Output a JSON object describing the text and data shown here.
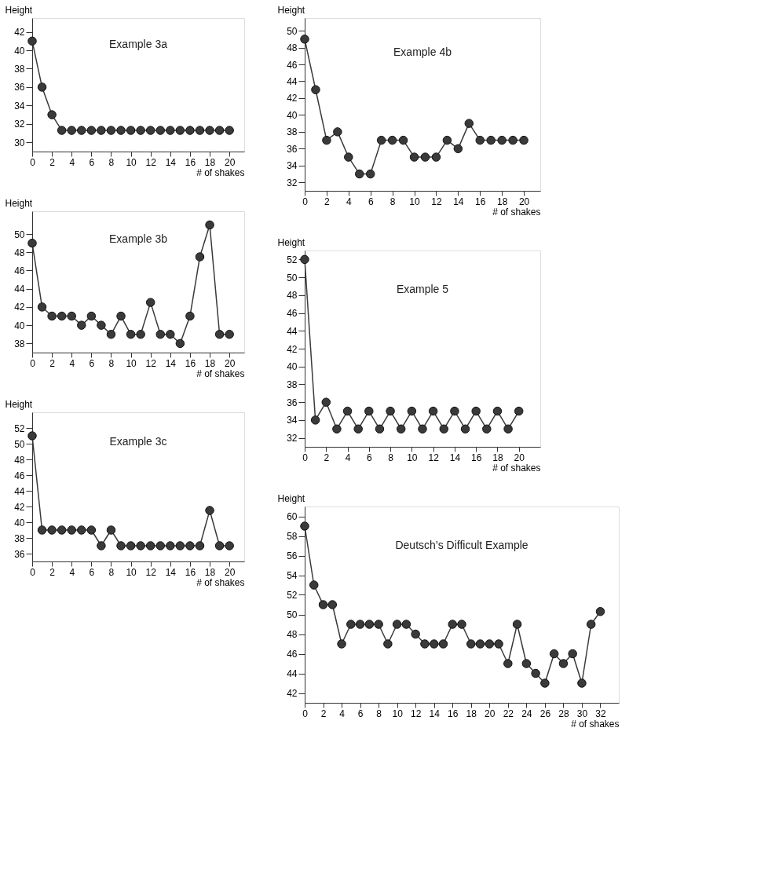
{
  "chart_data": [
    {
      "type": "line",
      "title": "Example 3a",
      "xlabel": "# of shakes",
      "ylabel": "Height",
      "color": "#3a3a3a",
      "marker": "circle",
      "line_style": "solid",
      "grid": false,
      "x": [
        0,
        1,
        2,
        3,
        4,
        5,
        6,
        7,
        8,
        9,
        10,
        11,
        12,
        13,
        14,
        15,
        16,
        17,
        18,
        19,
        20
      ],
      "values": [
        41,
        36,
        33,
        31.3,
        31.3,
        31.3,
        31.3,
        31.3,
        31.3,
        31.3,
        31.3,
        31.3,
        31.3,
        31.3,
        31.3,
        31.3,
        31.3,
        31.3,
        31.3,
        31.3,
        31.3
      ],
      "xlim": [
        0,
        21.5
      ],
      "ylim": [
        29,
        43.5
      ],
      "xticks": [
        0,
        2,
        4,
        6,
        8,
        10,
        12,
        14,
        16,
        18,
        20
      ],
      "yticks": [
        30,
        32,
        34,
        36,
        38,
        40,
        42
      ]
    },
    {
      "type": "line",
      "title": "Example 3b",
      "xlabel": "# of shakes",
      "ylabel": "Height",
      "color": "#3a3a3a",
      "marker": "circle",
      "line_style": "solid",
      "grid": false,
      "x": [
        0,
        1,
        2,
        3,
        4,
        5,
        6,
        7,
        8,
        9,
        10,
        11,
        12,
        13,
        14,
        15,
        16,
        17,
        18,
        19,
        20
      ],
      "values": [
        49,
        42,
        41,
        41,
        41,
        40,
        41,
        40,
        39,
        41,
        39,
        39,
        42.5,
        39,
        39,
        38,
        41,
        47.5,
        51,
        39,
        39
      ],
      "xlim": [
        0,
        21.5
      ],
      "ylim": [
        37,
        52.5
      ],
      "xticks": [
        0,
        2,
        4,
        6,
        8,
        10,
        12,
        14,
        16,
        18,
        20
      ],
      "yticks": [
        38,
        40,
        42,
        44,
        46,
        48,
        50
      ]
    },
    {
      "type": "line",
      "title": "Example 3c",
      "xlabel": "# of shakes",
      "ylabel": "Height",
      "color": "#3a3a3a",
      "marker": "circle",
      "line_style": "solid",
      "grid": false,
      "x": [
        0,
        1,
        2,
        3,
        4,
        5,
        6,
        7,
        8,
        9,
        10,
        11,
        12,
        13,
        14,
        15,
        16,
        17,
        18,
        19,
        20
      ],
      "values": [
        51,
        39,
        39,
        39,
        39,
        39,
        39,
        37,
        39,
        37,
        37,
        37,
        37,
        37,
        37,
        37,
        37,
        37,
        41.5,
        37,
        37
      ],
      "xlim": [
        0,
        21.5
      ],
      "ylim": [
        35,
        54
      ],
      "xticks": [
        0,
        2,
        4,
        6,
        8,
        10,
        12,
        14,
        16,
        18,
        20
      ],
      "yticks": [
        36,
        38,
        40,
        42,
        44,
        46,
        48,
        50,
        52
      ]
    },
    {
      "type": "line",
      "title": "Example 4b",
      "xlabel": "# of shakes",
      "ylabel": "Height",
      "color": "#3a3a3a",
      "marker": "circle",
      "line_style": "solid",
      "grid": false,
      "x": [
        0,
        1,
        2,
        3,
        4,
        5,
        6,
        7,
        8,
        9,
        10,
        11,
        12,
        13,
        14,
        15,
        16,
        17,
        18,
        19,
        20
      ],
      "values": [
        49,
        43,
        37,
        38,
        35,
        33,
        33,
        37,
        37,
        37,
        35,
        35,
        35,
        37,
        36,
        39,
        37,
        37,
        37,
        37,
        37
      ],
      "xlim": [
        0,
        21.5
      ],
      "ylim": [
        31,
        51.5
      ],
      "xticks": [
        0,
        2,
        4,
        6,
        8,
        10,
        12,
        14,
        16,
        18,
        20
      ],
      "yticks": [
        32,
        34,
        36,
        38,
        40,
        42,
        44,
        46,
        48,
        50
      ]
    },
    {
      "type": "line",
      "title": "Example 5",
      "xlabel": "# of shakes",
      "ylabel": "Height",
      "color": "#3a3a3a",
      "marker": "circle",
      "line_style": "solid",
      "grid": false,
      "x": [
        0,
        1,
        2,
        3,
        4,
        5,
        6,
        7,
        8,
        9,
        10,
        11,
        12,
        13,
        14,
        15,
        16,
        17,
        18,
        19,
        20
      ],
      "values": [
        52,
        34,
        36,
        33,
        35,
        33,
        35,
        33,
        35,
        33,
        35,
        33,
        35,
        33,
        35,
        33,
        35,
        33,
        35,
        33,
        35
      ],
      "xlim": [
        0,
        22
      ],
      "ylim": [
        31,
        53
      ],
      "xticks": [
        0,
        2,
        4,
        6,
        8,
        10,
        12,
        14,
        16,
        18,
        20
      ],
      "yticks": [
        32,
        34,
        36,
        38,
        40,
        42,
        44,
        46,
        48,
        50,
        52
      ]
    },
    {
      "type": "line",
      "title": "Deutsch’s Difficult Example",
      "xlabel": "# of shakes",
      "ylabel": "Height",
      "color": "#3a3a3a",
      "marker": "circle",
      "line_style": "solid",
      "grid": false,
      "x": [
        0,
        1,
        2,
        3,
        4,
        5,
        6,
        7,
        8,
        9,
        10,
        11,
        12,
        13,
        14,
        15,
        16,
        17,
        18,
        19,
        20,
        21,
        22,
        23,
        24,
        25,
        26,
        27,
        28,
        29,
        30,
        31,
        32
      ],
      "values": [
        59,
        53,
        51,
        51,
        47,
        49,
        49,
        49,
        49,
        47,
        49,
        49,
        48,
        47,
        47,
        47,
        49,
        49,
        47,
        47,
        47,
        47,
        45,
        49,
        45,
        44,
        43,
        46,
        45,
        46,
        43,
        49,
        50.3
      ],
      "xlim": [
        0,
        34
      ],
      "ylim": [
        41,
        61
      ],
      "xticks": [
        0,
        2,
        4,
        6,
        8,
        10,
        12,
        14,
        16,
        18,
        20,
        22,
        24,
        26,
        28,
        30,
        32
      ],
      "yticks": [
        42,
        44,
        46,
        48,
        50,
        52,
        54,
        56,
        58,
        60
      ]
    }
  ]
}
